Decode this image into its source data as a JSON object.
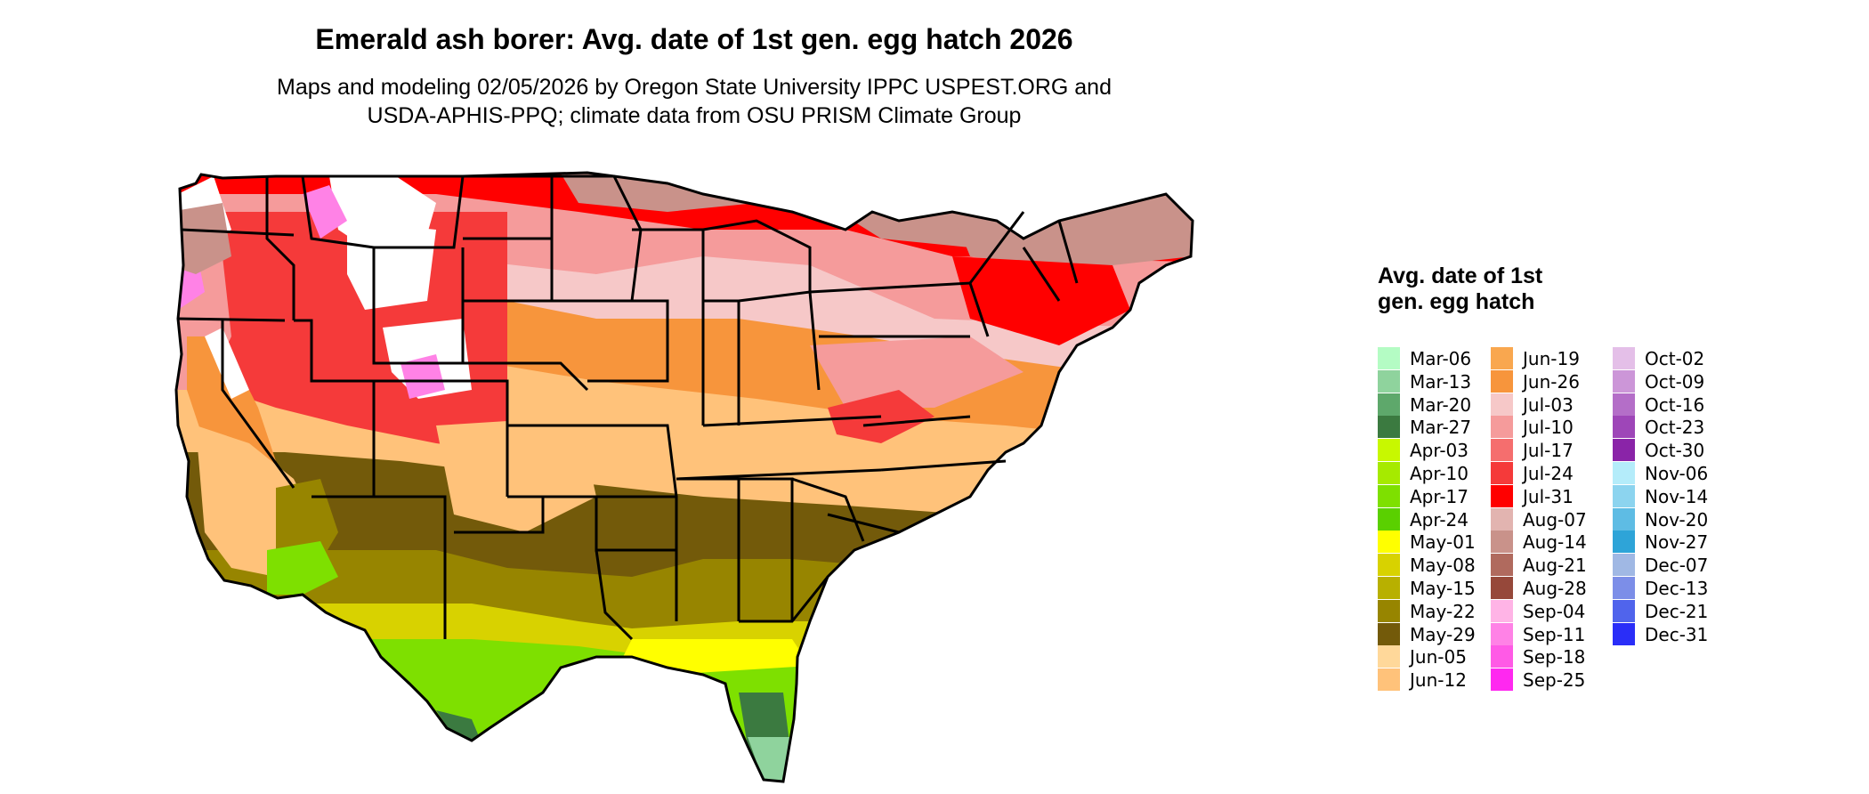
{
  "title": "Emerald ash borer: Avg. date of 1st gen. egg hatch 2026",
  "subtitle_line1": "Maps and modeling 02/05/2026 by Oregon State University IPPC USPEST.ORG and",
  "subtitle_line2": "USDA-APHIS-PPQ; climate data from OSU PRISM Climate Group",
  "legend": {
    "title": "Avg. date of 1st gen. egg hatch",
    "columns": [
      [
        {
          "label": "Mar-06",
          "color": "#b4fcc4"
        },
        {
          "label": "Mar-13",
          "color": "#8fd39d"
        },
        {
          "label": "Mar-20",
          "color": "#5ea86b"
        },
        {
          "label": "Mar-27",
          "color": "#3b7a40"
        },
        {
          "label": "Apr-03",
          "color": "#c8f800"
        },
        {
          "label": "Apr-10",
          "color": "#a6ea00"
        },
        {
          "label": "Apr-17",
          "color": "#7ee000"
        },
        {
          "label": "Apr-24",
          "color": "#5ad000"
        },
        {
          "label": "May-01",
          "color": "#ffff00"
        },
        {
          "label": "May-08",
          "color": "#d8d200"
        },
        {
          "label": "May-15",
          "color": "#b8b000"
        },
        {
          "label": "May-22",
          "color": "#978500"
        },
        {
          "label": "May-29",
          "color": "#735a0a"
        },
        {
          "label": "Jun-05",
          "color": "#ffd89a"
        },
        {
          "label": "Jun-12",
          "color": "#ffc27a"
        }
      ],
      [
        {
          "label": "Jun-19",
          "color": "#f9a74f"
        },
        {
          "label": "Jun-26",
          "color": "#f7953c"
        },
        {
          "label": "Jul-03",
          "color": "#f6c8c8"
        },
        {
          "label": "Jul-10",
          "color": "#f59b9b"
        },
        {
          "label": "Jul-17",
          "color": "#f56e6e"
        },
        {
          "label": "Jul-24",
          "color": "#f53a3a"
        },
        {
          "label": "Jul-31",
          "color": "#ff0000"
        },
        {
          "label": "Aug-07",
          "color": "#e2b4b0"
        },
        {
          "label": "Aug-14",
          "color": "#c9928a"
        },
        {
          "label": "Aug-21",
          "color": "#b06a5e"
        },
        {
          "label": "Aug-28",
          "color": "#96483a"
        },
        {
          "label": "Sep-04",
          "color": "#ffb4e6"
        },
        {
          "label": "Sep-11",
          "color": "#ff82e6"
        },
        {
          "label": "Sep-18",
          "color": "#ff5ae6"
        },
        {
          "label": "Sep-25",
          "color": "#ff28f0"
        }
      ],
      [
        {
          "label": "Oct-02",
          "color": "#e4bfe8"
        },
        {
          "label": "Oct-09",
          "color": "#cc96d8"
        },
        {
          "label": "Oct-16",
          "color": "#b46ec8"
        },
        {
          "label": "Oct-23",
          "color": "#9e46b8"
        },
        {
          "label": "Oct-30",
          "color": "#8a24a8"
        },
        {
          "label": "Nov-06",
          "color": "#b4ecfa"
        },
        {
          "label": "Nov-14",
          "color": "#8cd4ef"
        },
        {
          "label": "Nov-20",
          "color": "#5ebce4"
        },
        {
          "label": "Nov-27",
          "color": "#2ea4d8"
        },
        {
          "label": "Dec-07",
          "color": "#a0b8e4"
        },
        {
          "label": "Dec-13",
          "color": "#7c8ee8"
        },
        {
          "label": "Dec-21",
          "color": "#5064ec"
        },
        {
          "label": "Dec-31",
          "color": "#2a2ef8"
        }
      ]
    ]
  },
  "map": {
    "colors": {
      "south_green": "#7ee000",
      "gulf_yellow": "#d8d200",
      "olive": "#978500",
      "dark_olive": "#735a0a",
      "tan": "#ffc27a",
      "orange": "#f7953c",
      "light_pink": "#f6c8c8",
      "salmon": "#f59b9b",
      "red": "#ff0000",
      "red_medium": "#f53a3a",
      "brown_pink": "#c9928a",
      "mountain_white": "#ffffff",
      "magenta_high": "#ff82e6",
      "florida_dark": "#3b7a40",
      "florida_light": "#8fd39d",
      "yellow": "#ffff00"
    }
  }
}
